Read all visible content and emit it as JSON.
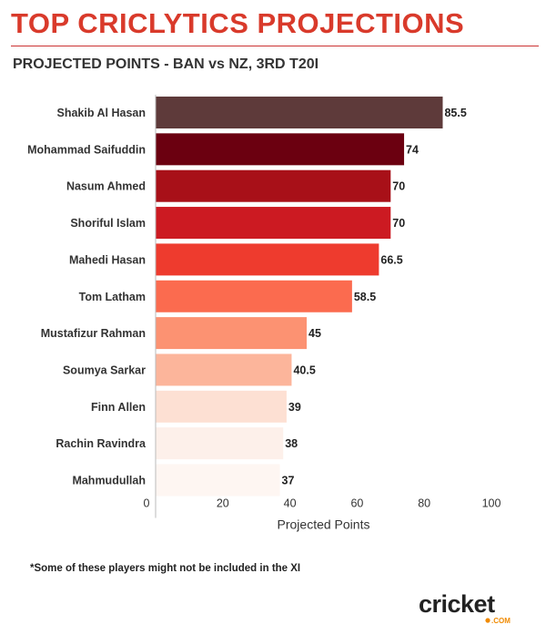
{
  "header": {
    "title": "TOP CRICLYTICS PROJECTIONS",
    "subtitle": "PROJECTED POINTS - BAN vs NZ, 3RD T20I"
  },
  "footnote": "*Some of these players might not be included in the XI",
  "logo": {
    "text": "cricket",
    "sub": ".COM"
  },
  "chart_data": {
    "type": "bar",
    "orientation": "horizontal",
    "categories": [
      "Shakib Al Hasan",
      "Mohammad Saifuddin",
      "Nasum Ahmed",
      "Shoriful Islam",
      "Mahedi Hasan",
      "Tom Latham",
      "Mustafizur Rahman",
      "Soumya Sarkar",
      "Finn Allen",
      "Rachin Ravindra",
      "Mahmudullah"
    ],
    "values": [
      85.5,
      74,
      70,
      70,
      66.5,
      58.5,
      45,
      40.5,
      39,
      38,
      37
    ],
    "value_labels": [
      "85.5",
      "74",
      "70",
      "70",
      "66.5",
      "58.5",
      "45",
      "40.5",
      "39",
      "38",
      "37"
    ],
    "colors": [
      "#5e3a3a",
      "#6b0010",
      "#a81018",
      "#cc1a22",
      "#ee3b2e",
      "#fb6b4f",
      "#fc9272",
      "#fcb59b",
      "#fde0d3",
      "#fdf0ea",
      "#fef6f2"
    ],
    "xlabel": "Projected Points",
    "ylabel": "",
    "xlim": [
      0,
      100
    ],
    "xticks": [
      0,
      20,
      40,
      60,
      80,
      100
    ],
    "grid": false
  }
}
